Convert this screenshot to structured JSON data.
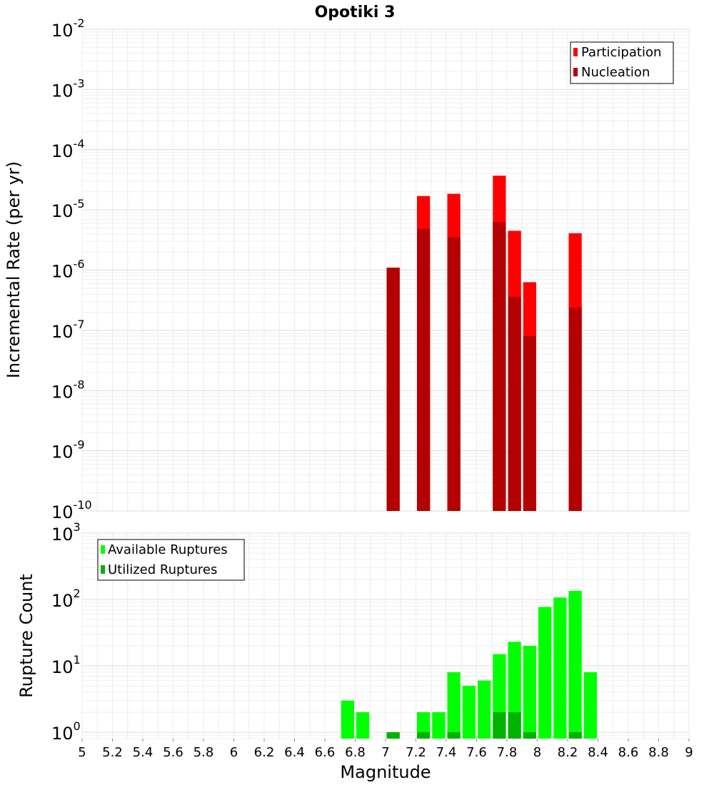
{
  "chart_data": {
    "title": "Opotiki 3",
    "xlabel": "Magnitude",
    "xlim": [
      5,
      9
    ],
    "x_ticks": [
      "5",
      "5.2",
      "5.4",
      "5.6",
      "5.8",
      "6",
      "6.2",
      "6.4",
      "6.6",
      "6.8",
      "7",
      "7.2",
      "7.4",
      "7.6",
      "7.8",
      "8",
      "8.2",
      "8.4",
      "8.6",
      "8.8",
      "9"
    ],
    "bin_width": 0.1,
    "panels": [
      {
        "type": "bar",
        "yscale": "log",
        "ylabel": "Incremental Rate (per yr)",
        "ylim_exp": [
          -10,
          -2
        ],
        "y_tick_bases": [
          "10",
          "10",
          "10",
          "10",
          "10",
          "10",
          "10",
          "10",
          "10"
        ],
        "y_tick_exps": [
          "-10",
          "-9",
          "-8",
          "-7",
          "-6",
          "-5",
          "-4",
          "-3",
          "-2"
        ],
        "legend_position": "top-right",
        "series": [
          {
            "name": "Participation",
            "color": "#ff0000",
            "x": [
              7.05,
              7.25,
              7.45,
              7.75,
              7.85,
              7.95,
              8.25
            ],
            "values": [
              1.1e-06,
              1.7e-05,
              1.85e-05,
              3.7e-05,
              4.5e-06,
              6.3e-07,
              4.1e-06
            ]
          },
          {
            "name": "Nucleation",
            "color": "#b30000",
            "x": [
              7.05,
              7.25,
              7.45,
              7.75,
              7.85,
              7.95,
              8.25
            ],
            "values": [
              1.1e-06,
              4.8e-06,
              3.5e-06,
              6.3e-06,
              3.6e-07,
              8e-08,
              2.4e-07
            ]
          }
        ]
      },
      {
        "type": "bar",
        "yscale": "log",
        "ylabel": "Rupture Count",
        "ylim": [
          0.8,
          1000
        ],
        "y_tick_bases": [
          "10",
          "10",
          "10",
          "10"
        ],
        "y_tick_exps": [
          "0",
          "1",
          "2",
          "3"
        ],
        "legend_position": "top-left",
        "series": [
          {
            "name": "Available Ruptures",
            "color": "#00ff00",
            "x": [
              6.75,
              6.85,
              7.05,
              7.25,
              7.35,
              7.45,
              7.55,
              7.65,
              7.75,
              7.85,
              7.95,
              8.05,
              8.15,
              8.25,
              8.35
            ],
            "values": [
              3,
              2,
              1,
              2,
              2,
              8,
              5,
              6,
              15,
              23,
              20,
              77,
              107,
              135,
              8
            ]
          },
          {
            "name": "Utilized Ruptures",
            "color": "#00b300",
            "x": [
              7.05,
              7.25,
              7.45,
              7.75,
              7.85,
              7.95,
              8.25
            ],
            "values": [
              1,
              1,
              1,
              2,
              2,
              1,
              1
            ]
          }
        ]
      }
    ]
  }
}
